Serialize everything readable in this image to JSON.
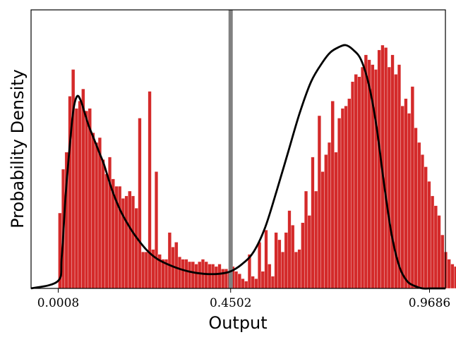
{
  "chart_data": {
    "type": "bar",
    "subtype": "histogram-with-density-curve",
    "title": "",
    "xlabel": "Output",
    "ylabel": "Probability Density",
    "xlim": [
      -0.07,
      1.01
    ],
    "ylim": [
      0,
      1.0
    ],
    "xticks": [
      {
        "value": 0.0008,
        "label": "0.0008"
      },
      {
        "value": 0.4502,
        "label": "0.4502"
      },
      {
        "value": 0.9686,
        "label": "0.9686"
      }
    ],
    "yticks_shown": false,
    "vertical_line": {
      "x": 0.4502,
      "color": "#808080"
    },
    "histogram": {
      "color": "#d42a2a",
      "bin_start": 0.0008,
      "bin_width": 0.00867,
      "values": [
        0.31,
        0.49,
        0.56,
        0.79,
        0.9,
        0.74,
        0.77,
        0.82,
        0.73,
        0.74,
        0.64,
        0.6,
        0.62,
        0.53,
        0.47,
        0.54,
        0.45,
        0.42,
        0.42,
        0.37,
        0.38,
        0.4,
        0.38,
        0.33,
        0.7,
        0.15,
        0.15,
        0.81,
        0.16,
        0.48,
        0.14,
        0.12,
        0.12,
        0.23,
        0.17,
        0.19,
        0.13,
        0.12,
        0.12,
        0.11,
        0.11,
        0.1,
        0.11,
        0.12,
        0.11,
        0.1,
        0.1,
        0.09,
        0.1,
        0.08,
        0.08,
        0.07,
        0.09,
        0.07,
        0.06,
        0.04,
        0.03,
        0.14,
        0.05,
        0.04,
        0.19,
        0.07,
        0.24,
        0.1,
        0.05,
        0.23,
        0.2,
        0.15,
        0.23,
        0.32,
        0.26,
        0.15,
        0.16,
        0.27,
        0.4,
        0.3,
        0.54,
        0.4,
        0.71,
        0.48,
        0.55,
        0.6,
        0.77,
        0.56,
        0.7,
        0.74,
        0.75,
        0.78,
        0.85,
        0.88,
        0.87,
        0.91,
        0.96,
        0.94,
        0.92,
        0.9,
        0.98,
        1.0,
        0.99,
        0.91,
        0.96,
        0.88,
        0.92,
        0.75,
        0.78,
        0.72,
        0.83,
        0.66,
        0.6,
        0.55,
        0.5,
        0.44,
        0.38,
        0.34,
        0.3,
        0.22,
        0.15,
        0.12,
        0.1,
        0.09
      ]
    },
    "density_curve": {
      "color": "#000000",
      "x": [
        -0.07,
        0.0,
        0.01,
        0.02,
        0.03,
        0.04,
        0.05,
        0.06,
        0.07,
        0.08,
        0.09,
        0.1,
        0.11,
        0.12,
        0.14,
        0.16,
        0.18,
        0.2,
        0.23,
        0.26,
        0.3,
        0.34,
        0.38,
        0.42,
        0.45,
        0.48,
        0.51,
        0.54,
        0.57,
        0.6,
        0.63,
        0.66,
        0.69,
        0.71,
        0.73,
        0.75,
        0.77,
        0.79,
        0.81,
        0.83,
        0.85,
        0.87,
        0.89,
        0.91,
        0.93,
        0.95,
        0.97,
        0.99,
        1.01
      ],
      "y": [
        0.0,
        0.03,
        0.13,
        0.38,
        0.57,
        0.73,
        0.79,
        0.77,
        0.72,
        0.67,
        0.63,
        0.59,
        0.55,
        0.51,
        0.41,
        0.33,
        0.27,
        0.22,
        0.16,
        0.12,
        0.09,
        0.07,
        0.06,
        0.06,
        0.07,
        0.1,
        0.15,
        0.25,
        0.4,
        0.56,
        0.72,
        0.85,
        0.93,
        0.97,
        0.99,
        1.0,
        0.98,
        0.94,
        0.84,
        0.67,
        0.43,
        0.22,
        0.09,
        0.03,
        0.01,
        0.0,
        0.0,
        0.0,
        0.0
      ]
    }
  }
}
